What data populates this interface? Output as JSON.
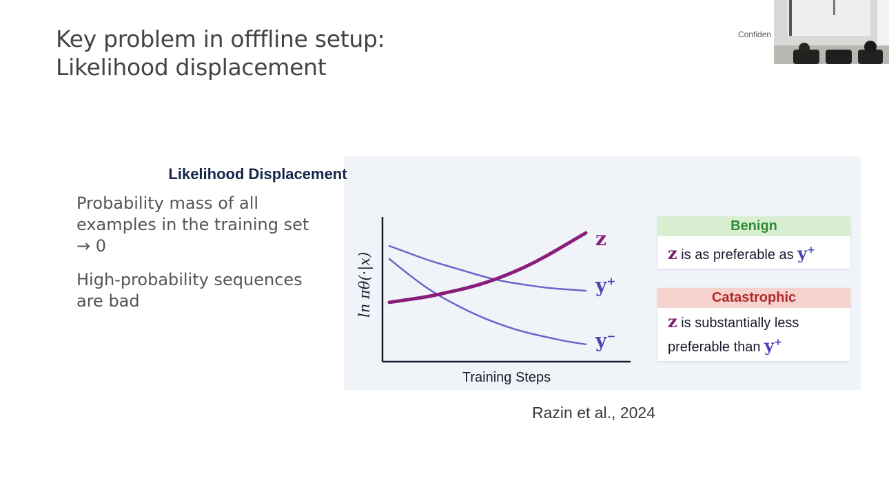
{
  "slide": {
    "title_line1": "Key problem in offfline setup:",
    "title_line2": "Likelihood displacement",
    "confidential_label": "Confiden",
    "bullets": [
      "Probability mass of all examples in the training set → 0",
      "High-probability sequences are bad"
    ],
    "citation": "Razin et al., 2024"
  },
  "figure": {
    "title": "Likelihood Displacement",
    "xlabel": "Training Steps",
    "ylabel": "ln πθ(·|x)",
    "labels": {
      "z": "z",
      "y_plus": "y",
      "y_minus": "y",
      "plus_sign": "+",
      "minus_sign": "−"
    },
    "benign": {
      "header": "Benign",
      "var": "z",
      "text": " is as preferable as ",
      "y": "y",
      "sup": "+"
    },
    "catastrophic": {
      "header": "Catastrophic",
      "var": "z",
      "text": " is substantially less preferable than ",
      "y": "y",
      "sup": "+"
    }
  },
  "colors": {
    "z_curve": "#8a1d7c",
    "y_curves": "#6b63c9",
    "benign_header": "#d7efd0",
    "benign_text": "#2f8a35",
    "catastrophic_header": "#f5d2cd",
    "catastrophic_text": "#b2282a"
  },
  "chart_data": {
    "type": "line",
    "title": "Likelihood Displacement",
    "xlabel": "Training Steps",
    "ylabel": "ln πθ(·|x)",
    "x": [
      0,
      0.1,
      0.2,
      0.3,
      0.4,
      0.5,
      0.6,
      0.7,
      0.8,
      0.9,
      1.0
    ],
    "series": [
      {
        "name": "z",
        "values": [
          0.41,
          0.43,
          0.45,
          0.48,
          0.51,
          0.55,
          0.6,
          0.66,
          0.73,
          0.81,
          0.89
        ]
      },
      {
        "name": "y+",
        "values": [
          0.8,
          0.75,
          0.7,
          0.66,
          0.62,
          0.58,
          0.55,
          0.53,
          0.51,
          0.5,
          0.49
        ]
      },
      {
        "name": "y−",
        "values": [
          0.71,
          0.6,
          0.5,
          0.42,
          0.35,
          0.29,
          0.24,
          0.2,
          0.17,
          0.14,
          0.12
        ]
      }
    ],
    "xlim": [
      0,
      1
    ],
    "ylim": [
      0,
      1
    ],
    "grid": false,
    "legend": "none"
  }
}
